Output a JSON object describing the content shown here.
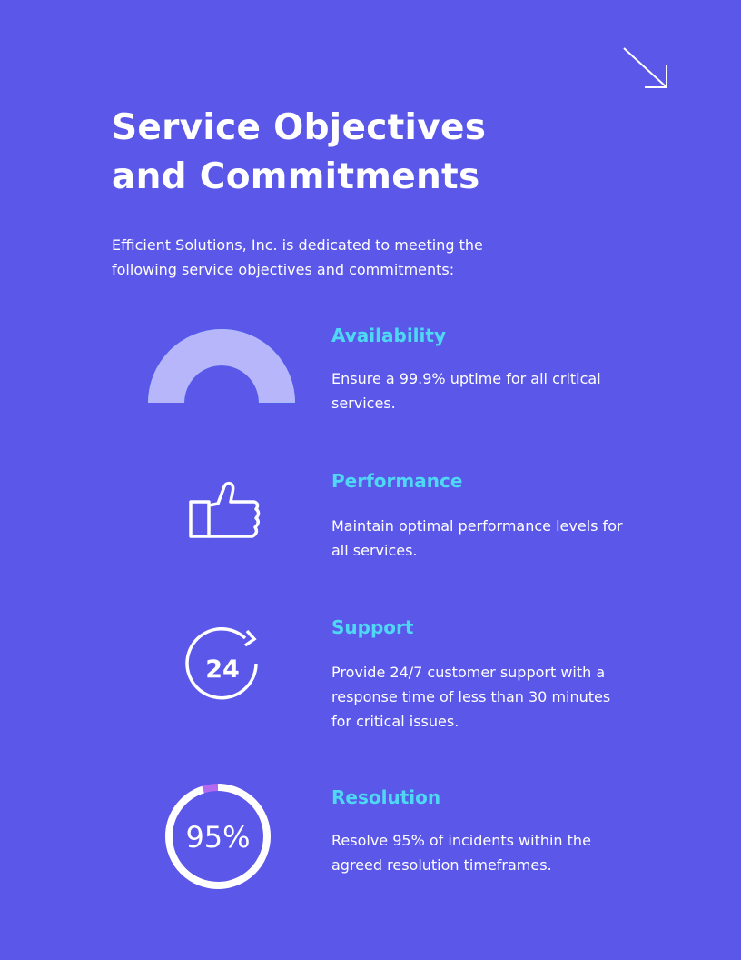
{
  "title": "Service Objectives and Commitments",
  "intro": "Efficient Solutions, Inc. is dedicated to meeting the following service objectives and commitments:",
  "colors": {
    "background": "#5a57e9",
    "accent": "#4fd8f4",
    "gauge_fill": "#b8b6fb",
    "ring_remainder": "#b46af0"
  },
  "items": [
    {
      "title": "Availability",
      "text": "Ensure a 99.9% uptime for all critical services.",
      "icon": "half-donut-gauge",
      "gauge_percent": 99.9
    },
    {
      "title": "Performance",
      "text": "Maintain optimal performance levels for all services.",
      "icon": "thumbs-up-icon"
    },
    {
      "title": "Support",
      "text": "Provide 24/7 customer support with a response time of less than 30 minutes for critical issues.",
      "icon": "24-hour-icon",
      "icon_label": "24"
    },
    {
      "title": "Resolution",
      "text": "Resolve 95% of incidents within the agreed resolution timeframes.",
      "icon": "progress-ring",
      "ring_percent": 95,
      "ring_label": "95%"
    }
  ]
}
